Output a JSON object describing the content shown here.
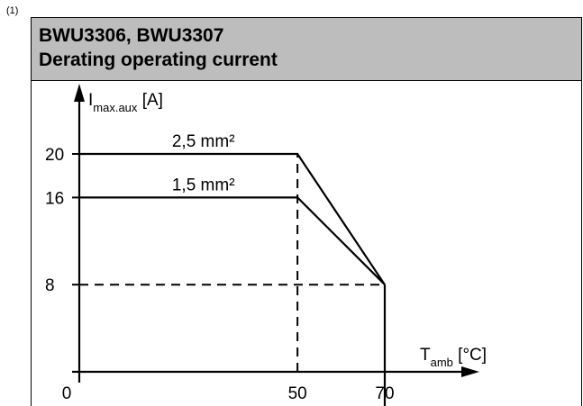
{
  "note_marker": "(1)",
  "header": {
    "title": "BWU3306, BWU3307",
    "subtitle": "Derating operating current"
  },
  "chart_data": {
    "type": "line",
    "title": "Derating operating current",
    "ylabel": {
      "main": "I",
      "sub": "max.aux",
      "unit": "[A]"
    },
    "xlabel": {
      "main": "T",
      "sub": "amb",
      "unit": "[°C]"
    },
    "xlim": [
      0,
      80
    ],
    "ylim": [
      0,
      24
    ],
    "x_ticks": [
      {
        "value": 0,
        "label": "0"
      },
      {
        "value": 50,
        "label": "50"
      },
      {
        "value": 70,
        "label": "70"
      }
    ],
    "y_ticks": [
      {
        "value": 8,
        "label": "8"
      },
      {
        "value": 16,
        "label": "16"
      },
      {
        "value": 20,
        "label": "20"
      }
    ],
    "series": [
      {
        "name": "2,5 mm²",
        "points": [
          [
            0,
            20
          ],
          [
            50,
            20
          ],
          [
            70,
            8
          ]
        ]
      },
      {
        "name": "1,5 mm²",
        "points": [
          [
            0,
            16
          ],
          [
            50,
            16
          ],
          [
            70,
            8
          ]
        ]
      }
    ],
    "cutoff": {
      "x": 70,
      "from_y": 8,
      "to_y": 0
    },
    "guides": [
      {
        "type": "vertical",
        "x": 50,
        "from_y": 0,
        "to_y": 20
      },
      {
        "type": "horizontal",
        "y": 8,
        "from_x": 0,
        "to_x": 70
      }
    ],
    "grid": false
  }
}
